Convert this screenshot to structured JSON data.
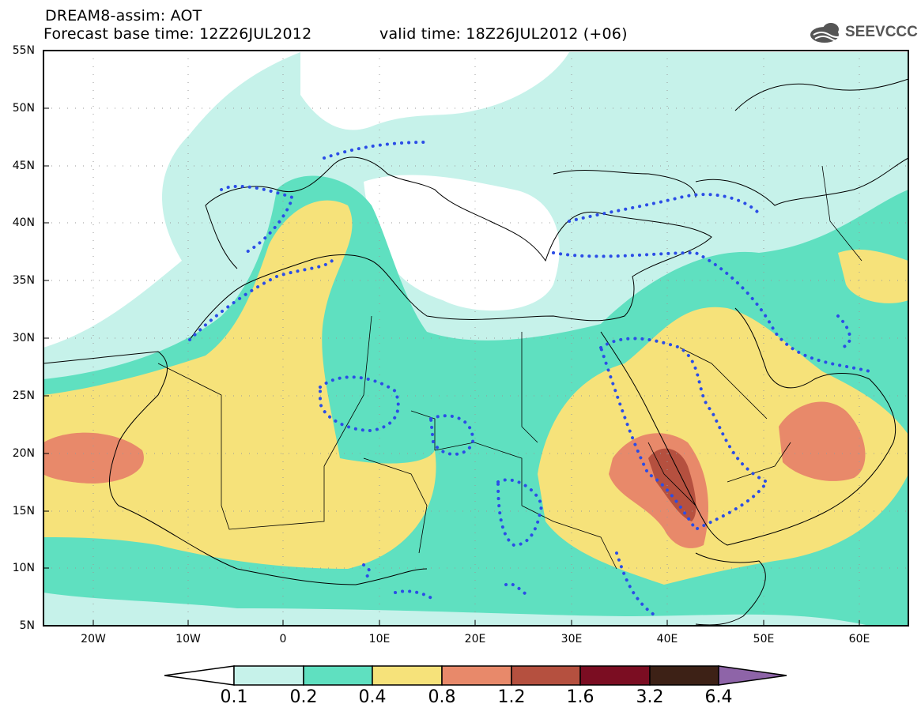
{
  "header": {
    "line1": "DREAM8-assim: AOT",
    "line2": "Forecast base time: 12Z26JUL2012",
    "line2b": "valid time: 18Z26JUL2012 (+06)"
  },
  "logo": {
    "text": "SEEVCCC",
    "icon": "cloud-icon"
  },
  "axes": {
    "lat_labels": [
      "55N",
      "50N",
      "45N",
      "40N",
      "35N",
      "30N",
      "25N",
      "20N",
      "15N",
      "10N",
      "5N"
    ],
    "lon_labels": [
      "20W",
      "10W",
      "0",
      "10E",
      "20E",
      "30E",
      "40E",
      "50E",
      "60E"
    ]
  },
  "colorbar": {
    "labels": [
      "0.1",
      "0.2",
      "0.4",
      "0.8",
      "1.2",
      "1.6",
      "3.2",
      "6.4"
    ],
    "colors": [
      "#ffffff",
      "#c6f2ea",
      "#5fe0c0",
      "#f6e27a",
      "#e8896a",
      "#b5503f",
      "#7b0d22",
      "#3d2116",
      "#8e64a8"
    ]
  },
  "palette": {
    "ocean": "#ffffff",
    "c1": "#c6f2ea",
    "c2": "#5fe0c0",
    "c3": "#f6e27a",
    "c4": "#e8896a",
    "c5": "#b5503f",
    "contour": "#2b4de6"
  }
}
